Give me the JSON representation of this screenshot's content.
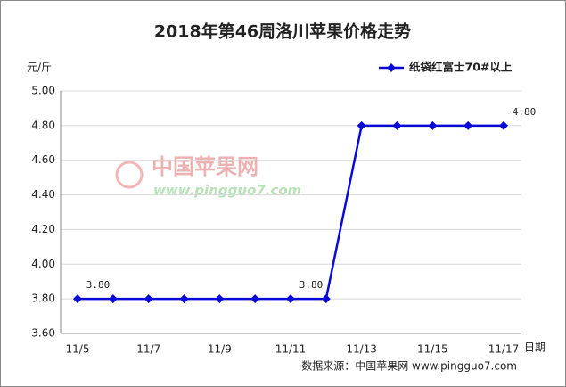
{
  "chart_data": {
    "type": "line",
    "title": "2018年第46周洛川苹果价格走势",
    "ylabel": "元/斤",
    "xlabel": "日期",
    "source": "数据来源：中国苹果网 www.pingguo7.com",
    "watermark": [
      "中国苹果网",
      "www.pingguo7.com"
    ],
    "categories": [
      "11/5",
      null,
      "11/7",
      null,
      "11/9",
      null,
      "11/11",
      null,
      "11/13",
      null,
      "11/15",
      null,
      "11/17"
    ],
    "series": [
      {
        "name": "纸袋红富士70#以上",
        "color": "#0a0ad8",
        "values": [
          3.8,
          3.8,
          3.8,
          3.8,
          3.8,
          3.8,
          3.8,
          3.8,
          4.8,
          4.8,
          4.8,
          4.8,
          4.8
        ],
        "value_labels": [
          "3.80",
          null,
          null,
          null,
          null,
          null,
          "3.80",
          null,
          null,
          null,
          null,
          null,
          "4.80"
        ]
      }
    ],
    "ylim": [
      3.6,
      5.0
    ],
    "yticks": [
      {
        "value": 3.6,
        "label": "3.60"
      },
      {
        "value": 3.8,
        "label": "3.80"
      },
      {
        "value": 4.0,
        "label": "4.00"
      },
      {
        "value": 4.2,
        "label": "4.20"
      },
      {
        "value": 4.4,
        "label": "4.40"
      },
      {
        "value": 4.6,
        "label": "4.60"
      },
      {
        "value": 4.8,
        "label": "4.80"
      },
      {
        "value": 5.0,
        "label": "5.00"
      }
    ],
    "grid": true,
    "legend": "top-right"
  }
}
